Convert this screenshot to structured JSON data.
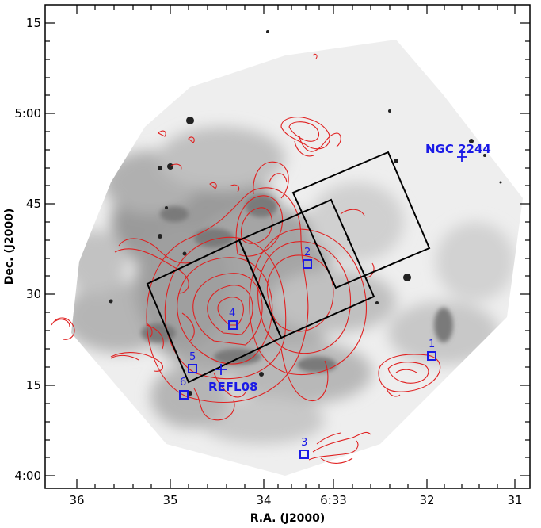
{
  "axes": {
    "x_title": "R.A. (J2000)",
    "y_title": "Dec. (J2000)",
    "x_ticks": [
      "36",
      "35",
      "34",
      "6:33",
      "32",
      "31"
    ],
    "y_ticks": [
      "15",
      "5:00",
      "45",
      "30",
      "15",
      "4:00"
    ]
  },
  "labels": {
    "ngc": "NGC 2244",
    "refl": "REFL08"
  },
  "markers": [
    "1",
    "2",
    "3",
    "4",
    "5",
    "6"
  ],
  "colors": {
    "contour": "#e02020",
    "marker": "#1a1ae6",
    "frame": "#000000",
    "background_emission": "#7a7a7a"
  }
}
